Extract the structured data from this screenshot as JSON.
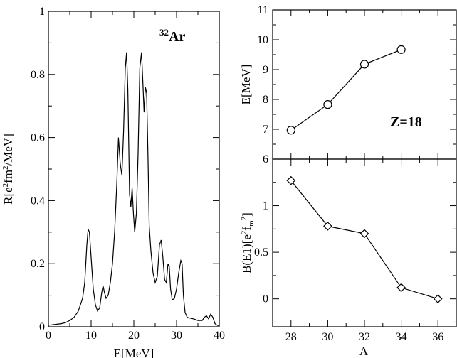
{
  "chart_data": [
    {
      "type": "line",
      "panel": "left",
      "xlabel": "E[MeV]",
      "ylabel": "R[e²fm²/MeV]",
      "ylabel_parts": [
        "R[e",
        "2",
        "fm",
        "2",
        "/MeV]"
      ],
      "annotation": {
        "mass": "32",
        "symbol": "Ar"
      },
      "xlim": [
        0,
        40
      ],
      "ylim": [
        0,
        1
      ],
      "xticks": [
        "0",
        "10",
        "20",
        "30",
        "40"
      ],
      "yticks": [
        "0",
        "0.2",
        "0.4",
        "0.6",
        "0.8",
        "1"
      ],
      "x": [
        0,
        2,
        3,
        4,
        5,
        6,
        7,
        8,
        8.5,
        9,
        9.3,
        9.6,
        10,
        10.5,
        11,
        11.5,
        12,
        12.5,
        12.8,
        13.1,
        13.5,
        14,
        14.5,
        15,
        15.5,
        16,
        16.4,
        16.8,
        17.2,
        17.6,
        18,
        18.3,
        18.6,
        19,
        19.3,
        19.6,
        19.9,
        20.2,
        20.6,
        21,
        21.4,
        21.8,
        22.1,
        22.4,
        22.7,
        23,
        23.3,
        23.6,
        24,
        24.5,
        25,
        25.5,
        26,
        26.4,
        26.8,
        27.2,
        27.6,
        28,
        28.3,
        28.6,
        29,
        29.5,
        30,
        30.5,
        31,
        31.3,
        31.6,
        32,
        32.5,
        33,
        34,
        35,
        36,
        36.5,
        37,
        37.5,
        38,
        38.5,
        39,
        39.5,
        40
      ],
      "y": [
        0.005,
        0.008,
        0.01,
        0.013,
        0.02,
        0.03,
        0.05,
        0.09,
        0.14,
        0.26,
        0.31,
        0.3,
        0.22,
        0.12,
        0.07,
        0.05,
        0.06,
        0.11,
        0.13,
        0.11,
        0.09,
        0.1,
        0.14,
        0.2,
        0.3,
        0.45,
        0.6,
        0.52,
        0.48,
        0.62,
        0.82,
        0.87,
        0.75,
        0.42,
        0.38,
        0.44,
        0.36,
        0.3,
        0.36,
        0.55,
        0.82,
        0.87,
        0.78,
        0.68,
        0.76,
        0.74,
        0.55,
        0.32,
        0.24,
        0.17,
        0.14,
        0.16,
        0.26,
        0.275,
        0.22,
        0.15,
        0.14,
        0.2,
        0.19,
        0.12,
        0.085,
        0.09,
        0.12,
        0.17,
        0.21,
        0.2,
        0.1,
        0.045,
        0.03,
        0.028,
        0.025,
        0.02,
        0.02,
        0.03,
        0.035,
        0.025,
        0.04,
        0.03,
        0.01,
        0.005,
        0.003
      ]
    },
    {
      "type": "line",
      "panel": "top-right",
      "ylabel": "E[MeV]",
      "annotation": "Z=18",
      "marker": "circle",
      "xlim": [
        27,
        37
      ],
      "ylim": [
        6,
        11
      ],
      "yticks": [
        "6",
        "7",
        "8",
        "9",
        "10",
        "11"
      ],
      "x": [
        28,
        30,
        32,
        34
      ],
      "y": [
        6.97,
        7.83,
        9.18,
        9.67
      ]
    },
    {
      "type": "line",
      "panel": "bottom-right",
      "xlabel": "A",
      "ylabel": "B(E1)[e²fₘ²]",
      "ylabel_parts": [
        "B(E1)[e",
        "2",
        "f",
        "m",
        "2",
        "]"
      ],
      "marker": "diamond",
      "xlim": [
        27,
        37
      ],
      "ylim": [
        -0.3,
        1.5
      ],
      "xticks": [
        "28",
        "30",
        "32",
        "34",
        "36"
      ],
      "yticks": [
        "0",
        "0.5",
        "1"
      ],
      "x": [
        28,
        30,
        32,
        34,
        36
      ],
      "y": [
        1.27,
        0.78,
        0.7,
        0.12,
        0.0
      ]
    }
  ]
}
